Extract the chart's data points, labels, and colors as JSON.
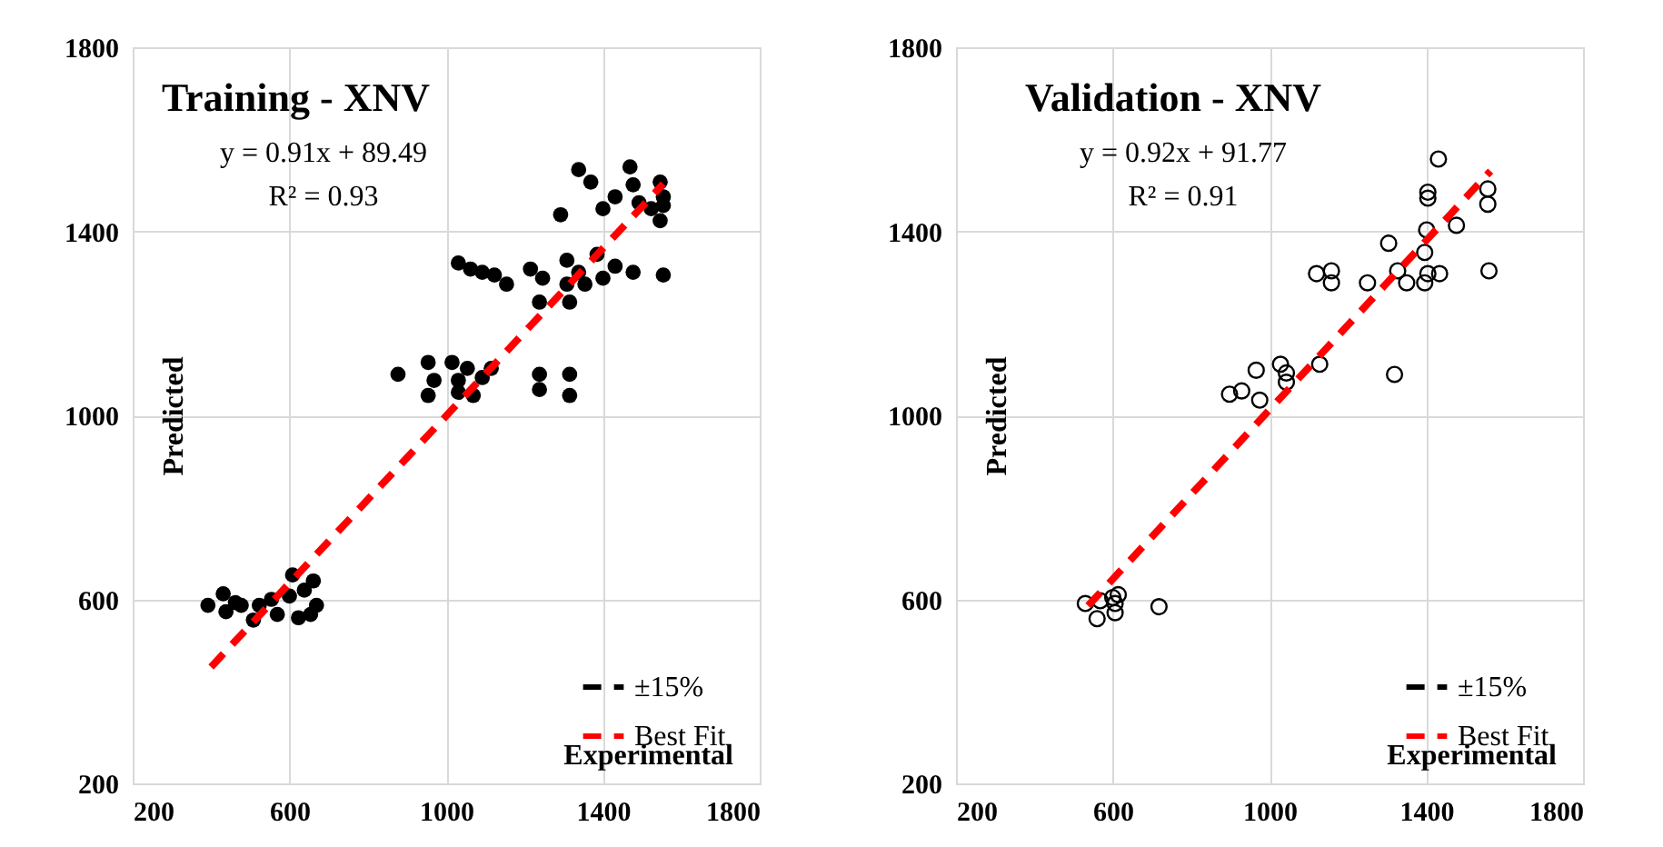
{
  "chart_data": [
    {
      "type": "scatter",
      "title": "Training - XNV",
      "xlabel": "Experimental",
      "ylabel": "Predicted",
      "annotations": [
        "y = 0.91x + 89.49",
        "R² = 0.93"
      ],
      "xlim": [
        200,
        1800
      ],
      "ylim": [
        200,
        1800
      ],
      "xticks": [
        200,
        600,
        1000,
        1400,
        1800
      ],
      "yticks": [
        200,
        600,
        1000,
        1400,
        1800
      ],
      "grid": true,
      "legend": "bottom right",
      "series": [
        {
          "color": "#000000",
          "marker": "circle",
          "x": [
            392,
            431,
            438,
            462,
            477,
            508,
            523,
            554,
            569,
            600,
            608,
            623,
            638,
            661,
            669,
            654,
            877,
            954,
            954,
            969,
            1015,
            1031,
            1054,
            1069,
            1092,
            1115,
            1031,
            1238,
            1238,
            1315,
            1315,
            1031,
            1062,
            1092,
            1123,
            1154,
            1215,
            1246,
            1238,
            1308,
            1308,
            1315,
            1338,
            1385,
            1400,
            1431,
            1477,
            1554,
            1354,
            1338,
            1292,
            1469,
            1477,
            1431,
            1492,
            1400,
            1523,
            1546,
            1554,
            1546,
            1554,
            1369
          ],
          "values": [
            587,
            612,
            573,
            593,
            587,
            555,
            587,
            600,
            567,
            607,
            653,
            560,
            620,
            640,
            587,
            567,
            1089,
            1115,
            1043,
            1076,
            1115,
            1076,
            1102,
            1043,
            1082,
            1102,
            1050,
            1089,
            1056,
            1089,
            1043,
            1331,
            1318,
            1311,
            1305,
            1285,
            1318,
            1298,
            1246,
            1337,
            1285,
            1246,
            1311,
            1350,
            1298,
            1324,
            1311,
            1305,
            1285,
            1534,
            1436,
            1540,
            1501,
            1475,
            1462,
            1449,
            1449,
            1507,
            1475,
            1423,
            1456,
            1507
          ]
        },
        {
          "type": "line",
          "name": "±15%",
          "color": "#000000",
          "line_style": "dashed"
        },
        {
          "type": "line",
          "name": "Best Fit",
          "color": "#ff0000",
          "line_style": "dashed",
          "x": [
            400,
            1554
          ],
          "values": [
            453,
            1503
          ]
        }
      ]
    },
    {
      "type": "scatter",
      "title": "Validation - XNV",
      "xlabel": "Experimental",
      "ylabel": "Predicted",
      "annotations": [
        "y = 0.92x + 91.77",
        "R² = 0.91"
      ],
      "xlim": [
        200,
        1800
      ],
      "ylim": [
        200,
        1800
      ],
      "xticks": [
        200,
        600,
        1000,
        1400,
        1800
      ],
      "yticks": [
        200,
        600,
        1000,
        1400,
        1800
      ],
      "grid": true,
      "legend": "bottom right",
      "series": [
        {
          "color": "#000000",
          "marker": "circle",
          "x": [
            530,
            560,
            568,
            600,
            606,
            614,
            606,
            718,
            898,
            929,
            966,
            975,
            1028,
            1043,
            1043,
            1128,
            1120,
            1158,
            1158,
            1250,
            1304,
            1327,
            1350,
            1319,
            1396,
            1404,
            1434,
            1396,
            1401,
            1404,
            1404,
            1431,
            1477,
            1557,
            1557,
            1560
          ],
          "values": [
            591,
            558,
            597,
            604,
            571,
            610,
            591,
            584,
            1046,
            1053,
            1098,
            1033,
            1111,
            1092,
            1072,
            1111,
            1308,
            1314,
            1288,
            1288,
            1374,
            1314,
            1288,
            1089,
            1288,
            1308,
            1308,
            1354,
            1403,
            1485,
            1472,
            1557,
            1413,
            1492,
            1459,
            1314
          ]
        },
        {
          "type": "line",
          "name": "±15%",
          "color": "#000000",
          "line_style": "dashed"
        },
        {
          "type": "line",
          "name": "Best Fit",
          "color": "#ff0000",
          "line_style": "dashed",
          "x": [
            537,
            1564
          ],
          "values": [
            586,
            1531
          ]
        }
      ]
    }
  ]
}
